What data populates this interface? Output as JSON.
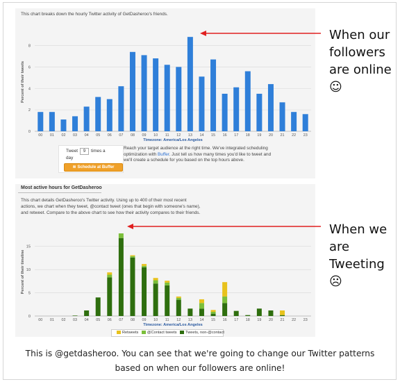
{
  "top": {
    "description": "This chart breaks down the hourly Twitter activity of GetDasheroo's friends.",
    "tweet_label_a": "Tweet",
    "tweet_count": "9",
    "tweet_label_b": "times a",
    "tweet_label_c": "day",
    "buffer_button": "Schedule at Buffer",
    "reach_text_1": "Reach your target audience at the right time. We've integrated scheduling",
    "reach_text_2a": "optimization with ",
    "reach_link": "Buffer",
    "reach_text_2b": ". Just tell us how many times you'd like to tweet and",
    "reach_text_3": "we'll create a schedule for you based on the top hours above."
  },
  "bottom": {
    "title": "Most active hours for GetDasheroo",
    "desc_1": "This chart details GetDasheroo's Twitter activity. Using up to 400 of their most recent",
    "desc_2": "actions, we chart when they tweet, @contact tweet (ones that begin with someone's name),",
    "desc_3": "and retweet. Compare to the above chart to see how their activity compares to their friends."
  },
  "callouts": {
    "top_lines": [
      "When our",
      "followers",
      "are online ☺"
    ],
    "bottom_lines": [
      "When we",
      "are",
      "Tweeting",
      "☹"
    ]
  },
  "caption_lines": [
    "This is @getdasheroo. You can see that we're going to change our Twitter patterns",
    "based on when our followers are online!"
  ],
  "colors": {
    "blue_bar": "#2f7fd9",
    "retweets": "#e8c21d",
    "contact": "#7bbf3a",
    "tweets_non_contact": "#2e6e0e",
    "arrow": "#e02020"
  },
  "chart_data": [
    {
      "type": "bar",
      "xlabel": "Timezone: America/Los Angeles",
      "ylabel": "Percent of their tweets",
      "categories": [
        "00",
        "01",
        "02",
        "03",
        "04",
        "05",
        "06",
        "07",
        "08",
        "09",
        "10",
        "11",
        "12",
        "13",
        "14",
        "15",
        "16",
        "17",
        "18",
        "19",
        "20",
        "21",
        "22",
        "23"
      ],
      "values": [
        1.8,
        1.8,
        1.1,
        1.4,
        2.3,
        3.2,
        3.0,
        4.2,
        7.4,
        7.1,
        6.8,
        6.2,
        6.0,
        8.8,
        5.1,
        6.7,
        3.5,
        4.1,
        5.6,
        3.5,
        4.4,
        2.7,
        1.8,
        1.6
      ],
      "yticks": [
        0,
        2,
        4,
        6,
        8
      ],
      "ylim": [
        0,
        9.2
      ],
      "grid": true
    },
    {
      "type": "bar",
      "stacked": true,
      "xlabel": "Timezone: America/Los Angeles",
      "ylabel": "Percent of their timeline",
      "categories": [
        "00",
        "01",
        "02",
        "03",
        "04",
        "05",
        "06",
        "07",
        "08",
        "09",
        "10",
        "11",
        "12",
        "13",
        "14",
        "15",
        "16",
        "17",
        "18",
        "19",
        "20",
        "21",
        "22",
        "23"
      ],
      "series": [
        {
          "name": "Tweets, non-@contact",
          "values": [
            0,
            0,
            0,
            0.1,
            1.2,
            4.0,
            8.3,
            16.8,
            12.6,
            10.5,
            7.0,
            6.6,
            3.5,
            1.6,
            1.6,
            0.5,
            2.8,
            1.1,
            0.2,
            1.6,
            1.2,
            0.2,
            0,
            0
          ]
        },
        {
          "name": "@Contact tweets",
          "values": [
            0,
            0,
            0,
            0,
            0,
            0,
            0.6,
            1.0,
            0.3,
            0.3,
            0.7,
            0.6,
            0.4,
            0,
            1.2,
            0.4,
            1.4,
            0,
            0,
            0,
            0,
            0,
            0,
            0
          ]
        },
        {
          "name": "Retweets",
          "values": [
            0,
            0,
            0,
            0,
            0,
            0,
            0.5,
            0,
            0.2,
            0.4,
            0.5,
            0.4,
            0.3,
            0,
            0.8,
            0.4,
            3.1,
            0,
            0,
            0,
            0,
            1.0,
            0,
            0
          ]
        }
      ],
      "yticks": [
        0,
        5,
        10,
        15
      ],
      "ylim": [
        0,
        19
      ],
      "legend": "bottom",
      "grid": true
    }
  ]
}
